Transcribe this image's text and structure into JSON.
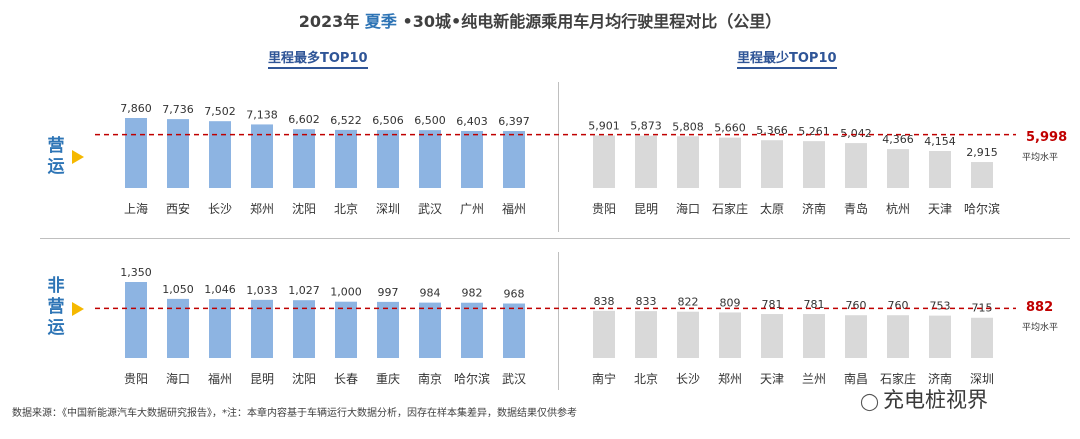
{
  "title": {
    "prefix": "2023年 ",
    "highlight": "夏季",
    "suffix": " •30城•纯电新能源乘用车月均行驶里程对比（公里）"
  },
  "subtitles": {
    "left": "里程最多TOP10",
    "right": "里程最少TOP10"
  },
  "rows": [
    {
      "label": "营\n运",
      "avg_value": "5,998",
      "avg_note": "平均水平"
    },
    {
      "label": "非\n营\n运",
      "avg_value": "882",
      "avg_note": "平均水平"
    }
  ],
  "colors": {
    "top_bar": "#8db4e2",
    "bottom_bar": "#d9d9d9",
    "avg_line": "#c00000",
    "arrow": "#f5b800",
    "subtitle": "#2f5597"
  },
  "chart_data": [
    {
      "type": "bar",
      "title": "里程最多TOP10",
      "group": "营运",
      "categories": [
        "上海",
        "西安",
        "长沙",
        "郑州",
        "沈阳",
        "北京",
        "深圳",
        "武汉",
        "广州",
        "福州"
      ],
      "values": [
        7860,
        7736,
        7502,
        7138,
        6602,
        6522,
        6506,
        6500,
        6403,
        6397
      ],
      "value_labels": [
        "7,860",
        "7,736",
        "7,502",
        "7,138",
        "6,602",
        "6,522",
        "6,506",
        "6,500",
        "6,403",
        "6,397"
      ],
      "average": 5998
    },
    {
      "type": "bar",
      "title": "里程最少TOP10",
      "group": "营运",
      "categories": [
        "贵阳",
        "昆明",
        "海口",
        "石家庄",
        "太原",
        "济南",
        "青岛",
        "杭州",
        "天津",
        "哈尔滨"
      ],
      "values": [
        5901,
        5873,
        5808,
        5660,
        5366,
        5261,
        5042,
        4366,
        4154,
        2915
      ],
      "value_labels": [
        "5,901",
        "5,873",
        "5,808",
        "5,660",
        "5,366",
        "5,261",
        "5,042",
        "4,366",
        "4,154",
        "2,915"
      ],
      "average": 5998
    },
    {
      "type": "bar",
      "title": "里程最多TOP10",
      "group": "非营运",
      "categories": [
        "贵阳",
        "海口",
        "福州",
        "昆明",
        "沈阳",
        "长春",
        "重庆",
        "南京",
        "哈尔滨",
        "武汉"
      ],
      "values": [
        1350,
        1050,
        1046,
        1033,
        1027,
        1000,
        997,
        984,
        982,
        968
      ],
      "value_labels": [
        "1,350",
        "1,050",
        "1,046",
        "1,033",
        "1,027",
        "1,000",
        "997",
        "984",
        "982",
        "968"
      ],
      "average": 882
    },
    {
      "type": "bar",
      "title": "里程最少TOP10",
      "group": "非营运",
      "categories": [
        "南宁",
        "北京",
        "长沙",
        "郑州",
        "天津",
        "兰州",
        "南昌",
        "石家庄",
        "济南",
        "深圳"
      ],
      "values": [
        838,
        833,
        822,
        809,
        781,
        781,
        760,
        760,
        753,
        715
      ],
      "value_labels": [
        "838",
        "833",
        "822",
        "809",
        "781",
        "781",
        "760",
        "760",
        "753",
        "715"
      ],
      "average": 882
    }
  ],
  "footer": "数据来源：《中国新能源汽车大数据研究报告》，*注：本章内容基于车辆运行大数据分析，因存在样本集差异，数据结果仅供参考",
  "brand": {
    "icon": "wechat-icon",
    "text": "充电桩视界"
  }
}
